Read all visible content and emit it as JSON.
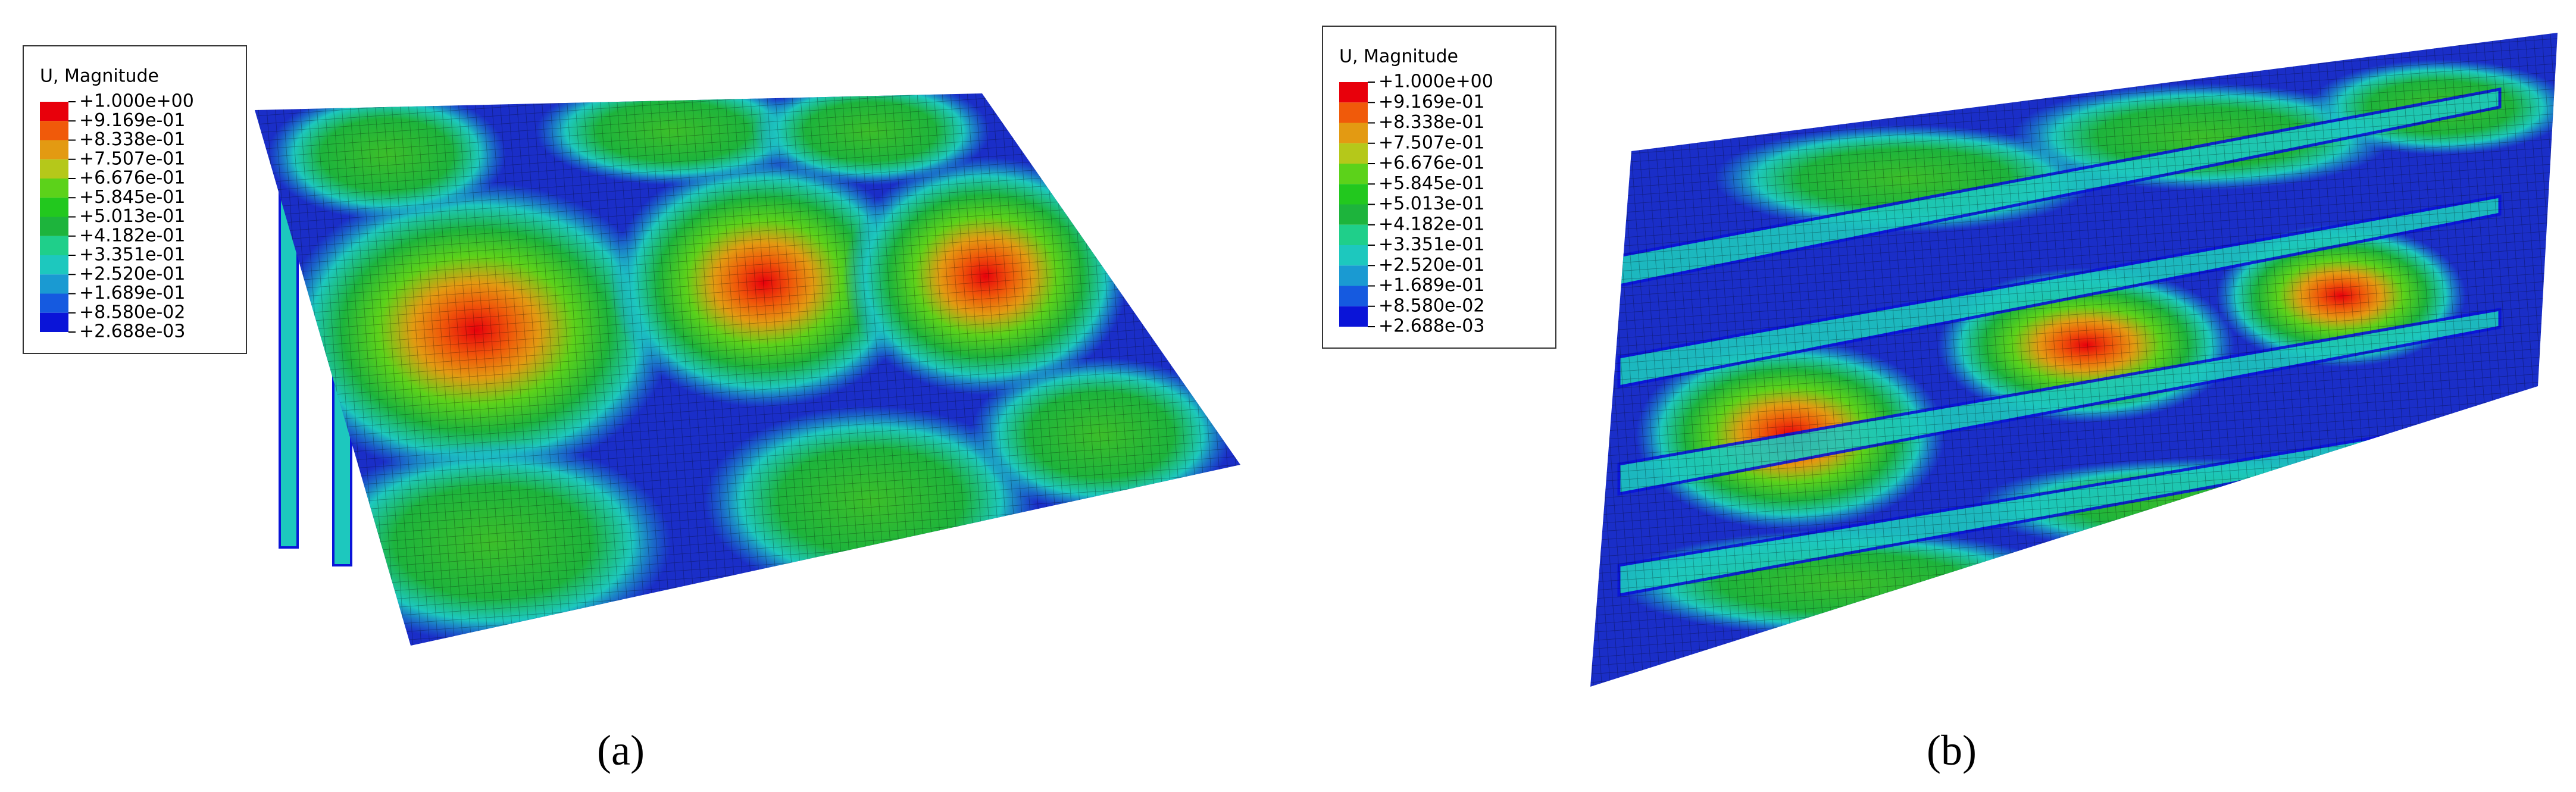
{
  "panels": [
    {
      "caption": "(a)",
      "legend": {
        "title": "U, Magnitude",
        "labels": [
          "+1.000e+00",
          "+9.169e-01",
          "+8.338e-01",
          "+7.507e-01",
          "+6.676e-01",
          "+5.845e-01",
          "+5.013e-01",
          "+4.182e-01",
          "+3.351e-01",
          "+2.520e-01",
          "+1.689e-01",
          "+8.580e-02",
          "+2.688e-03"
        ]
      }
    },
    {
      "caption": "(b)",
      "legend": {
        "title": "U, Magnitude",
        "labels": [
          "+1.000e+00",
          "+9.169e-01",
          "+8.338e-01",
          "+7.507e-01",
          "+6.676e-01",
          "+5.845e-01",
          "+5.013e-01",
          "+4.182e-01",
          "+3.351e-01",
          "+2.520e-01",
          "+1.689e-01",
          "+8.580e-02",
          "+2.688e-03"
        ]
      }
    }
  ],
  "legend_colors": [
    "#e8000b",
    "#f05a0a",
    "#e39a12",
    "#b5c81a",
    "#5cd21a",
    "#22c81e",
    "#1db43c",
    "#1fcf8a",
    "#1dc8be",
    "#1a9ad2",
    "#155ae0",
    "#0a14d8"
  ]
}
